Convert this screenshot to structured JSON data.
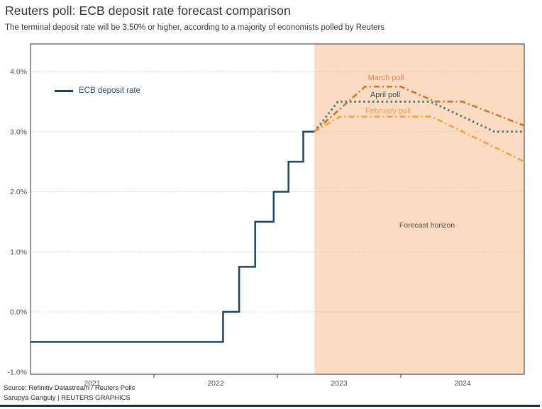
{
  "header": {
    "title": "Reuters poll: ECB deposit rate forecast comparison",
    "subtitle": "The terminal deposit rate will be 3.50% or higher, according to a majority of economists polled by Reuters"
  },
  "footer": {
    "source": "Source: Refinitiv Datastream / Reuters Polls",
    "credit": "Sarupya Ganguly | REUTERS GRAPHICS"
  },
  "chart_data": {
    "type": "line",
    "title": "Reuters poll: ECB deposit rate forecast comparison",
    "x_axis": {
      "range": [
        2021,
        2025
      ],
      "tick_values": [
        2022,
        2023,
        2024
      ],
      "labels": [
        {
          "text": "2021",
          "center": 2021.5
        },
        {
          "text": "2022",
          "center": 2022.5
        },
        {
          "text": "2023",
          "center": 2023.5
        },
        {
          "text": "2024",
          "center": 2024.5
        }
      ]
    },
    "y_axis": {
      "unit": "%",
      "range": [
        -1.04,
        4.46
      ],
      "gridline_values": [
        4,
        3,
        2,
        1,
        0
      ],
      "ticks": [
        {
          "label": "4.0%",
          "value": 4.0
        },
        {
          "label": "3.0%",
          "value": 3.0
        },
        {
          "label": "2.0%",
          "value": 2.0
        },
        {
          "label": "1.0%",
          "value": 1.0
        },
        {
          "label": "0.0%",
          "value": 0.0
        },
        {
          "label": "-1.0%",
          "value": -1.0
        }
      ]
    },
    "forecast_region": {
      "start_x": 2023.3,
      "end_x": 2025.0,
      "color": "#fbdcc3",
      "label": "Forecast horizon",
      "label_color": "#4c4c4c"
    },
    "grid": true,
    "legend_position": "upper-left-inside",
    "series": [
      {
        "name": "ECB deposit rate",
        "color": "#1a4569",
        "label_color": "#2f4f6e",
        "style": "solid",
        "width": 2.5,
        "points": [
          [
            2021.0,
            -0.5
          ],
          [
            2022.56,
            -0.5
          ],
          [
            2022.56,
            0.0
          ],
          [
            2022.69,
            0.0
          ],
          [
            2022.69,
            0.75
          ],
          [
            2022.82,
            0.75
          ],
          [
            2022.82,
            1.5
          ],
          [
            2022.97,
            1.5
          ],
          [
            2022.97,
            2.0
          ],
          [
            2023.09,
            2.0
          ],
          [
            2023.09,
            2.5
          ],
          [
            2023.21,
            2.5
          ],
          [
            2023.21,
            3.0
          ],
          [
            2023.3,
            3.0
          ]
        ]
      },
      {
        "name": "March poll",
        "color": "#d96c29",
        "label_color": "#e5835a",
        "style": "dashdot",
        "width": 2.5,
        "points": [
          [
            2023.3,
            3.0
          ],
          [
            2023.71,
            3.75
          ],
          [
            2024.0,
            3.75
          ],
          [
            2024.28,
            3.5
          ],
          [
            2024.5,
            3.5
          ],
          [
            2025.0,
            3.1
          ]
        ]
      },
      {
        "name": "April poll",
        "color": "#4a7f7b",
        "label_color": "#31504e",
        "style": "dotted",
        "width": 3,
        "points": [
          [
            2023.3,
            3.0
          ],
          [
            2023.49,
            3.5
          ],
          [
            2024.24,
            3.5
          ],
          [
            2024.76,
            3.0
          ],
          [
            2025.0,
            3.0
          ]
        ]
      },
      {
        "name": "February poll",
        "color": "#f2a43c",
        "label_color": "#f0a14f",
        "style": "dashdot",
        "width": 2.5,
        "points": [
          [
            2023.3,
            3.0
          ],
          [
            2023.51,
            3.25
          ],
          [
            2024.25,
            3.25
          ],
          [
            2025.0,
            2.5
          ]
        ]
      }
    ]
  }
}
